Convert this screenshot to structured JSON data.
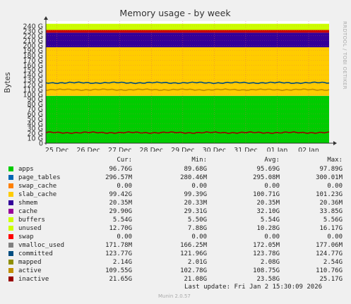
{
  "chart_data": {
    "type": "area",
    "title": "Memory usage - by week",
    "ylabel": "Bytes",
    "side_label": "RRDTOOL / TOBI OETIKER",
    "ylim": [
      0,
      250
    ],
    "yunit": "G",
    "yticks": [
      "0",
      "10 G",
      "20 G",
      "30 G",
      "40 G",
      "50 G",
      "60 G",
      "70 G",
      "80 G",
      "90 G",
      "100 G",
      "110 G",
      "120 G",
      "130 G",
      "140 G",
      "150 G",
      "160 G",
      "170 G",
      "180 G",
      "190 G",
      "200 G",
      "210 G",
      "220 G",
      "230 G",
      "240 G"
    ],
    "xticks": [
      "25 Dec",
      "26 Dec",
      "27 Dec",
      "28 Dec",
      "29 Dec",
      "30 Dec",
      "31 Dec",
      "01 Jan",
      "02 Jan"
    ],
    "stack_gb": [
      {
        "name": "apps",
        "color": "#00cc00",
        "value": 96.76
      },
      {
        "name": "page_tables",
        "color": "#0066b3",
        "value": 0.297
      },
      {
        "name": "swap_cache",
        "color": "#ff8000",
        "value": 0
      },
      {
        "name": "slab_cache",
        "color": "#ffcc00",
        "value": 99.42
      },
      {
        "name": "shmem",
        "color": "#330099",
        "value": 0.02
      },
      {
        "name": "cache",
        "color": "#330099",
        "value": 29.9
      },
      {
        "name": "buffers",
        "color": "#cc0000",
        "value": 5.54
      },
      {
        "name": "unused",
        "color": "#ccff00",
        "value": 12.7
      }
    ],
    "lines_gb": [
      {
        "name": "committed",
        "color": "#004d80",
        "value": 123.77
      },
      {
        "name": "active",
        "color": "#bf8f00",
        "value": 109.55
      },
      {
        "name": "inactive",
        "color": "#990000",
        "value": 21.65
      }
    ]
  },
  "legend": {
    "headers": {
      "cur": "Cur:",
      "min": "Min:",
      "avg": "Avg:",
      "max": "Max:"
    },
    "rows": [
      {
        "name": "apps",
        "color": "#00cc00",
        "cur": "96.76G",
        "min": "89.68G",
        "avg": "95.69G",
        "max": "97.89G"
      },
      {
        "name": "page_tables",
        "color": "#0066b3",
        "cur": "296.57M",
        "min": "280.46M",
        "avg": "295.08M",
        "max": "300.01M"
      },
      {
        "name": "swap_cache",
        "color": "#ff8000",
        "cur": "0.00",
        "min": "0.00",
        "avg": "0.00",
        "max": "0.00"
      },
      {
        "name": "slab_cache",
        "color": "#ffcc00",
        "cur": "99.42G",
        "min": "99.39G",
        "avg": "100.71G",
        "max": "101.23G"
      },
      {
        "name": "shmem",
        "color": "#330099",
        "cur": "20.35M",
        "min": "20.33M",
        "avg": "20.35M",
        "max": "20.36M"
      },
      {
        "name": "cache",
        "color": "#990099",
        "cur": "29.90G",
        "min": "29.31G",
        "avg": "32.10G",
        "max": "33.85G"
      },
      {
        "name": "buffers",
        "color": "#ccff00",
        "cur": "5.54G",
        "min": "5.50G",
        "avg": "5.54G",
        "max": "5.56G"
      },
      {
        "name": "unused",
        "color": "#ccff00",
        "cur": "12.70G",
        "min": "7.88G",
        "avg": "10.28G",
        "max": "16.17G"
      },
      {
        "name": "swap",
        "color": "#ff0000",
        "cur": "0.00",
        "min": "0.00",
        "avg": "0.00",
        "max": "0.00"
      },
      {
        "name": "vmalloc_used",
        "color": "#808080",
        "cur": "171.78M",
        "min": "166.25M",
        "avg": "172.05M",
        "max": "177.06M"
      },
      {
        "name": "committed",
        "color": "#004d80",
        "cur": "123.77G",
        "min": "121.96G",
        "avg": "123.78G",
        "max": "124.77G"
      },
      {
        "name": "mapped",
        "color": "#8f8f00",
        "cur": "2.14G",
        "min": "2.01G",
        "avg": "2.08G",
        "max": "2.54G"
      },
      {
        "name": "active",
        "color": "#bf8f00",
        "cur": "109.55G",
        "min": "102.78G",
        "avg": "108.75G",
        "max": "110.76G"
      },
      {
        "name": "inactive",
        "color": "#990000",
        "cur": "21.65G",
        "min": "21.08G",
        "avg": "23.58G",
        "max": "25.17G"
      }
    ]
  },
  "footer": {
    "last_update": "Last update: Fri Jan  2 15:30:09 2026",
    "munin": "Munin 2.0.57"
  }
}
